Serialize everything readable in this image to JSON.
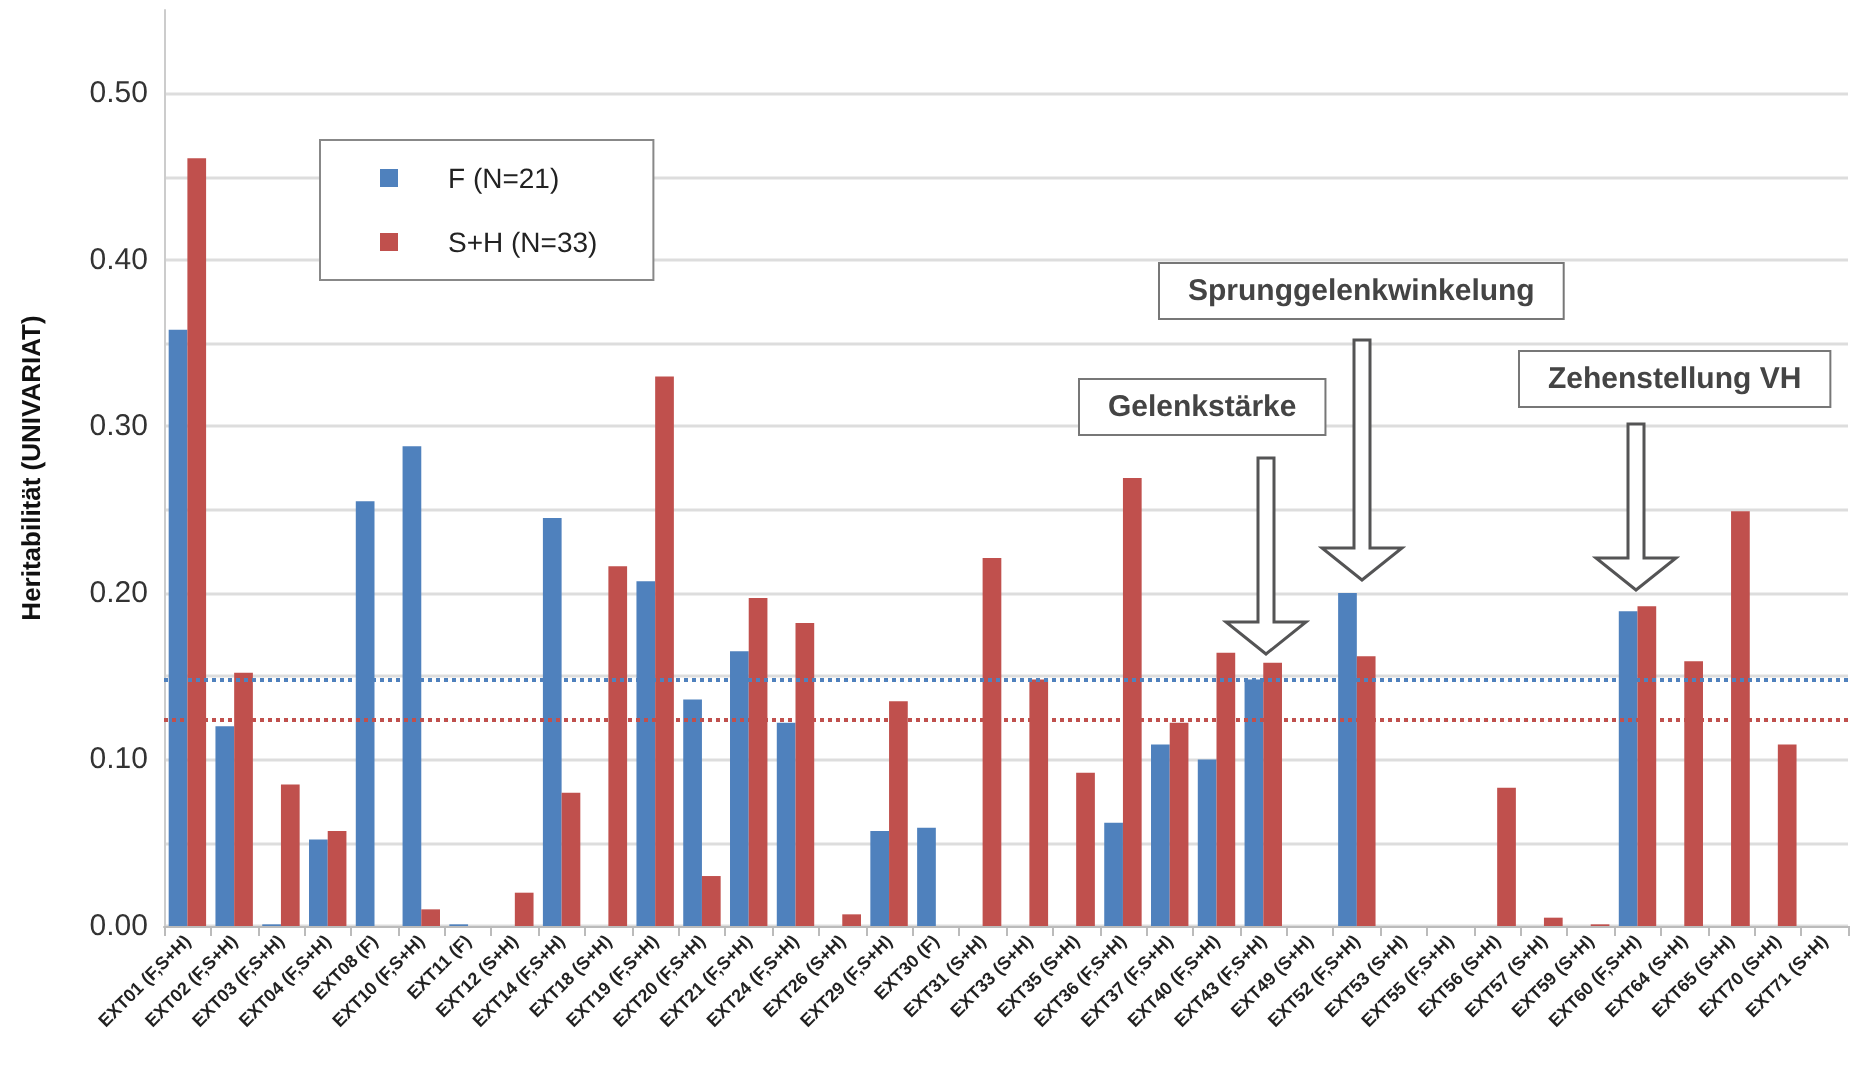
{
  "chart_data": {
    "type": "bar",
    "ylabel": "Heritabilität (UNIVARIAT)",
    "categories": [
      "EXT01 (F,S+H)",
      "EXT02 (F,S+H)",
      "EXT03 (F,S+H)",
      "EXT04 (F,S+H)",
      "EXT08 (F)",
      "EXT10 (F,S+H)",
      "EXT11 (F)",
      "EXT12 (S+H)",
      "EXT14 (F,S+H)",
      "EXT18 (S+H)",
      "EXT19 (F,S+H)",
      "EXT20 (F,S+H)",
      "EXT21 (F,S+H)",
      "EXT24 (F,S+H)",
      "EXT26 (S+H)",
      "EXT29 (F,S+H)",
      "EXT30 (F)",
      "EXT31 (S+H)",
      "EXT33 (S+H)",
      "EXT35 (S+H)",
      "EXT36 (F,S+H)",
      "EXT37 (F,S+H)",
      "EXT40 (F,S+H)",
      "EXT43 (F,S+H)",
      "EXT49 (S+H)",
      "EXT52 (F,S+H)",
      "EXT53 (S+H)",
      "EXT55 (F,S+H)",
      "EXT56 (S+H)",
      "EXT57 (S+H)",
      "EXT59 (S+H)",
      "EXT60 (F,S+H)",
      "EXT64 (S+H)",
      "EXT65 (S+H)",
      "EXT70 (S+H)",
      "EXT71 (S+H)"
    ],
    "series": [
      {
        "name": "F (N=21)",
        "color": "#4f81bd",
        "values": [
          0.358,
          0.12,
          0.001,
          0.052,
          0.255,
          0.288,
          0.001,
          null,
          0.245,
          null,
          0.207,
          0.136,
          0.165,
          0.122,
          null,
          0.057,
          0.059,
          null,
          null,
          null,
          0.062,
          0.109,
          0.1,
          0.148,
          null,
          0.2,
          null,
          null,
          null,
          null,
          null,
          0.189,
          null,
          null,
          null,
          null
        ]
      },
      {
        "name": "S+H (N=33)",
        "color": "#c0504d",
        "values": [
          0.461,
          0.152,
          0.085,
          0.057,
          null,
          0.01,
          null,
          0.02,
          0.08,
          0.216,
          0.33,
          0.03,
          0.197,
          0.182,
          0.007,
          0.135,
          null,
          0.221,
          0.148,
          0.092,
          0.269,
          0.122,
          0.164,
          0.158,
          null,
          0.162,
          null,
          null,
          0.083,
          0.005,
          0.001,
          0.192,
          0.159,
          0.249,
          0.109,
          null
        ]
      }
    ],
    "ylim": [
      0,
      0.55
    ],
    "yticks": [
      {
        "value": 0,
        "label": "0.00"
      },
      {
        "value": 0.05,
        "label": null
      },
      {
        "value": 0.1,
        "label": "0.10"
      },
      {
        "value": 0.15,
        "label": null
      },
      {
        "value": 0.2,
        "label": "0.20"
      },
      {
        "value": 0.25,
        "label": null
      },
      {
        "value": 0.3,
        "label": "0.30"
      },
      {
        "value": 0.35,
        "label": null
      },
      {
        "value": 0.4,
        "label": "0.40"
      },
      {
        "value": 0.45,
        "label": null
      },
      {
        "value": 0.5,
        "label": "0.50"
      }
    ],
    "grid": "y",
    "legend": "top left",
    "ref_lines": [
      {
        "axis": "y",
        "value": 0.148,
        "color": "#4f81bd",
        "line_style": "dotted"
      },
      {
        "axis": "y",
        "value": 0.124,
        "color": "#c0504d",
        "line_style": "dotted"
      }
    ],
    "annotations": [
      "Gelenkstärke",
      "Sprunggelenkwinkelung",
      "Zehenstellung VH"
    ]
  }
}
